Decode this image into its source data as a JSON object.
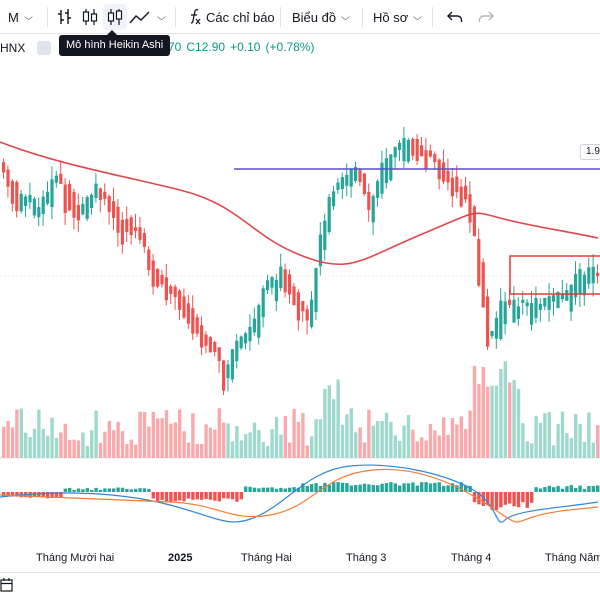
{
  "toolbar": {
    "interval_label": "M",
    "indicators_label": "Các chỉ báo",
    "chart_menu_label": "Biểu đồ",
    "profile_menu_label": "Hồ sơ",
    "icons": [
      "bars-icon",
      "candles-icon",
      "heikin-ashi-icon",
      "line-icon",
      "fx-icon",
      "undo-icon",
      "redo-icon"
    ]
  },
  "tooltip": {
    "text": "Mô hình Heikin Ashi"
  },
  "legend": {
    "symbol": "HNX",
    "partial_value": "70",
    "close": "C12.90",
    "change": "+0.10",
    "change_pct": "(+0.78%)"
  },
  "price_axis": {
    "label_partial": "1.9"
  },
  "time_axis": {
    "labels": [
      {
        "text": "Tháng Mười hai",
        "bold": false
      },
      {
        "text": "2025",
        "bold": true
      },
      {
        "text": "Tháng Hai",
        "bold": false
      },
      {
        "text": "Tháng 3",
        "bold": false
      },
      {
        "text": "Tháng 4",
        "bold": false
      },
      {
        "text": "Tháng Năm",
        "bold": false
      }
    ]
  },
  "colors": {
    "up": "#26a69a",
    "down": "#ef5350",
    "ma": "#e0474c",
    "hline": "#5b4fc7",
    "rect": "#e53935",
    "vol_up": "#9fd9cd",
    "vol_down": "#f7a9ab",
    "macd": "#2e86de",
    "signal": "#f57c38"
  }
}
